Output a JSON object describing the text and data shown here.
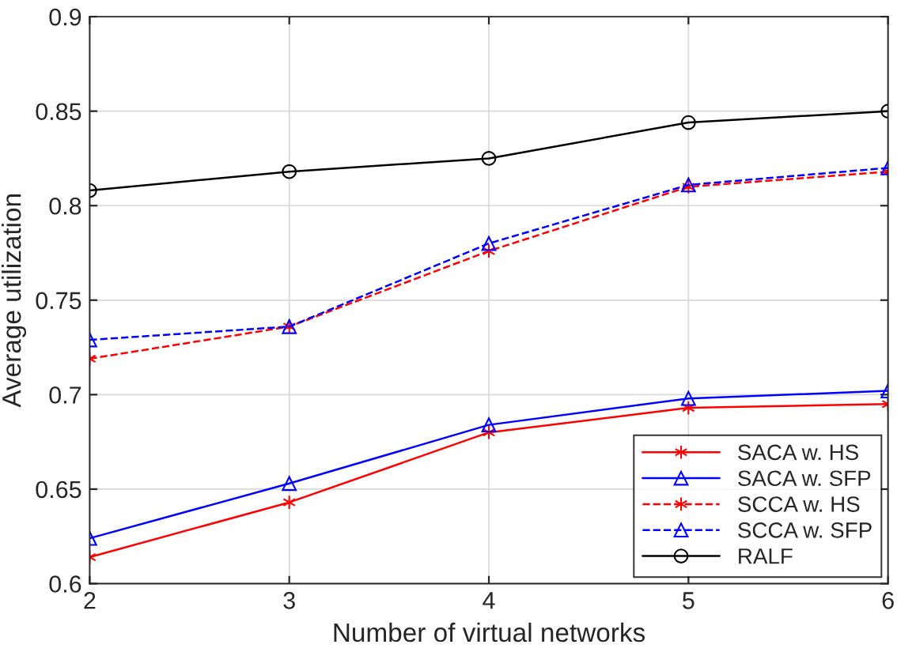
{
  "chart_data": {
    "type": "line",
    "xlabel": "Number of virtual networks",
    "ylabel": "Average utilization",
    "x": [
      2,
      3,
      4,
      5,
      6
    ],
    "series": [
      {
        "name": "SACA w. HS",
        "color": "#ff0000",
        "marker": "cross",
        "line_style": "solid",
        "values": [
          0.614,
          0.643,
          0.68,
          0.693,
          0.695
        ]
      },
      {
        "name": "SACA w. SFP",
        "color": "#0000ff",
        "marker": "triangle",
        "line_style": "solid",
        "values": [
          0.624,
          0.653,
          0.684,
          0.698,
          0.702
        ]
      },
      {
        "name": "SCCA w. HS",
        "color": "#ff0000",
        "marker": "cross",
        "line_style": "dashed",
        "values": [
          0.719,
          0.736,
          0.776,
          0.81,
          0.818
        ]
      },
      {
        "name": "SCCA w. SFP",
        "color": "#0000ff",
        "marker": "triangle",
        "line_style": "dashed",
        "values": [
          0.729,
          0.736,
          0.78,
          0.811,
          0.82
        ]
      },
      {
        "name": "RALF",
        "color": "#000000",
        "marker": "circle",
        "line_style": "solid",
        "values": [
          0.808,
          0.818,
          0.825,
          0.844,
          0.85
        ]
      }
    ],
    "xlim": [
      2,
      6
    ],
    "xticks": [
      2,
      3,
      4,
      5,
      6
    ],
    "ylim": [
      0.6,
      0.9
    ],
    "yticks": [
      0.6,
      0.65,
      0.7,
      0.75,
      0.8,
      0.85,
      0.9
    ],
    "grid": true,
    "legend": "bottom right"
  }
}
